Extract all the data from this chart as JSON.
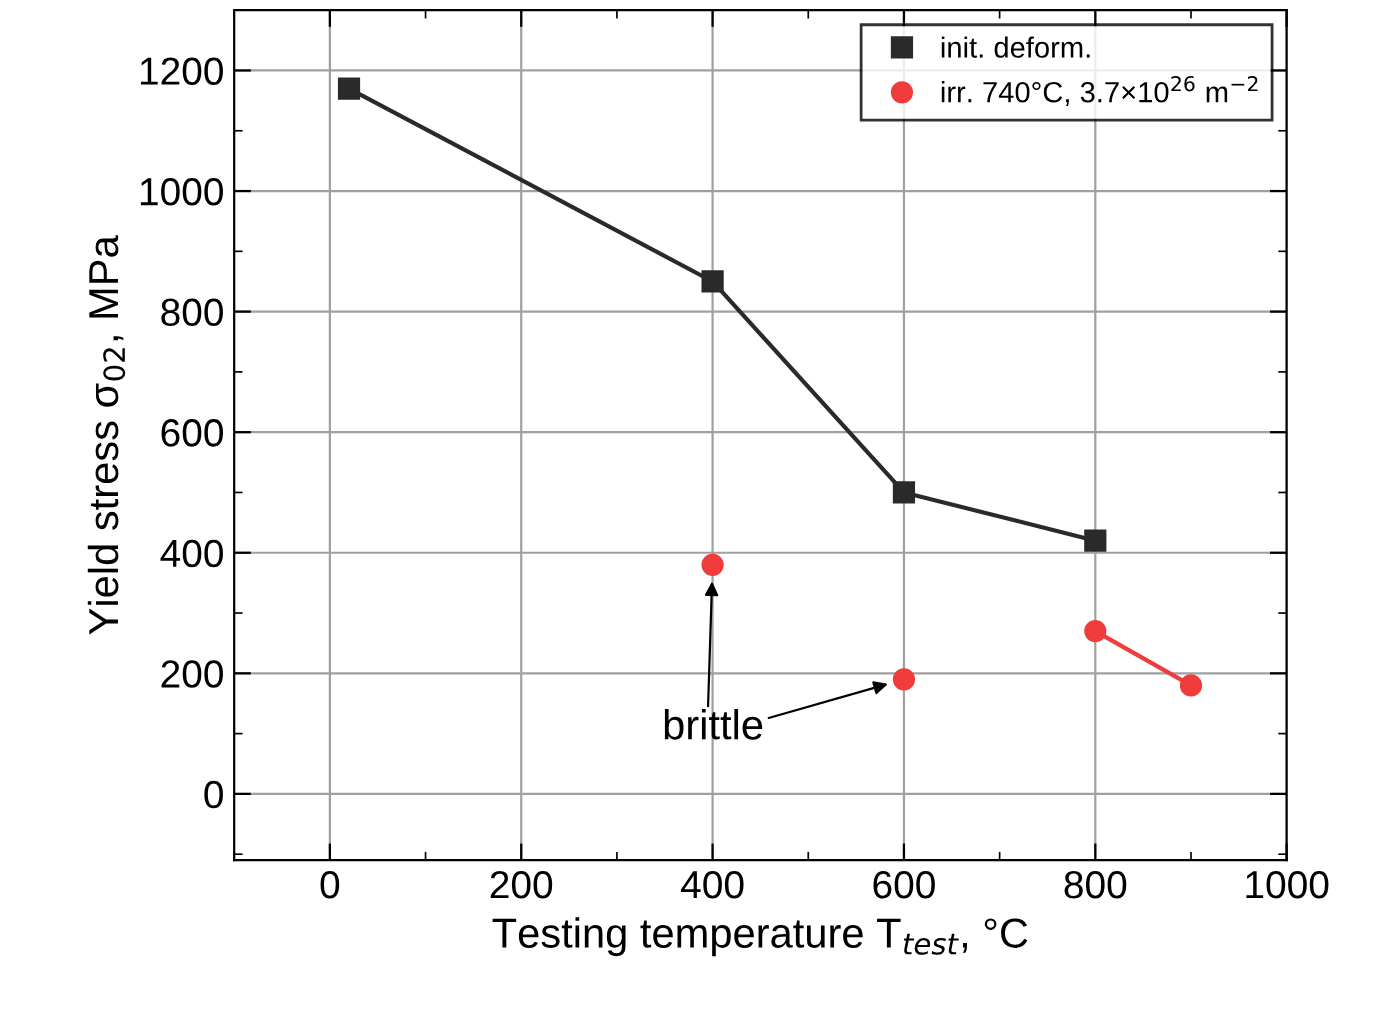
{
  "chart_data": {
    "type": "line",
    "xlabel": "Testing temperature T$_{test}$, °C",
    "ylabel": "Yield stress σ$_{02}$, MPa",
    "series": [
      {
        "name": "init. deform.",
        "color": "#2a2a2a",
        "marker": "square",
        "x": [
          20,
          400,
          600,
          800
        ],
        "values": [
          1170,
          850,
          500,
          420
        ]
      },
      {
        "name": "irr. 740°C, 3.7×10$^{26}$ m$^{−2}$",
        "color": "#f03c3c",
        "marker": "circle",
        "x": [
          400,
          500,
          600,
          700,
          800,
          900
        ],
        "values": [
          380,
          null,
          190,
          null,
          270,
          180
        ]
      }
    ],
    "xlim": [
      -100,
      1000
    ],
    "xticks": [
      0,
      200,
      400,
      600,
      800,
      1000
    ],
    "ylim": [
      -110,
      1300
    ],
    "yticks": [
      0,
      200,
      400,
      600,
      800,
      1000,
      1200
    ],
    "grid": true,
    "legend": "top right",
    "line_style": "solid",
    "annotations": [
      "brittle"
    ]
  }
}
